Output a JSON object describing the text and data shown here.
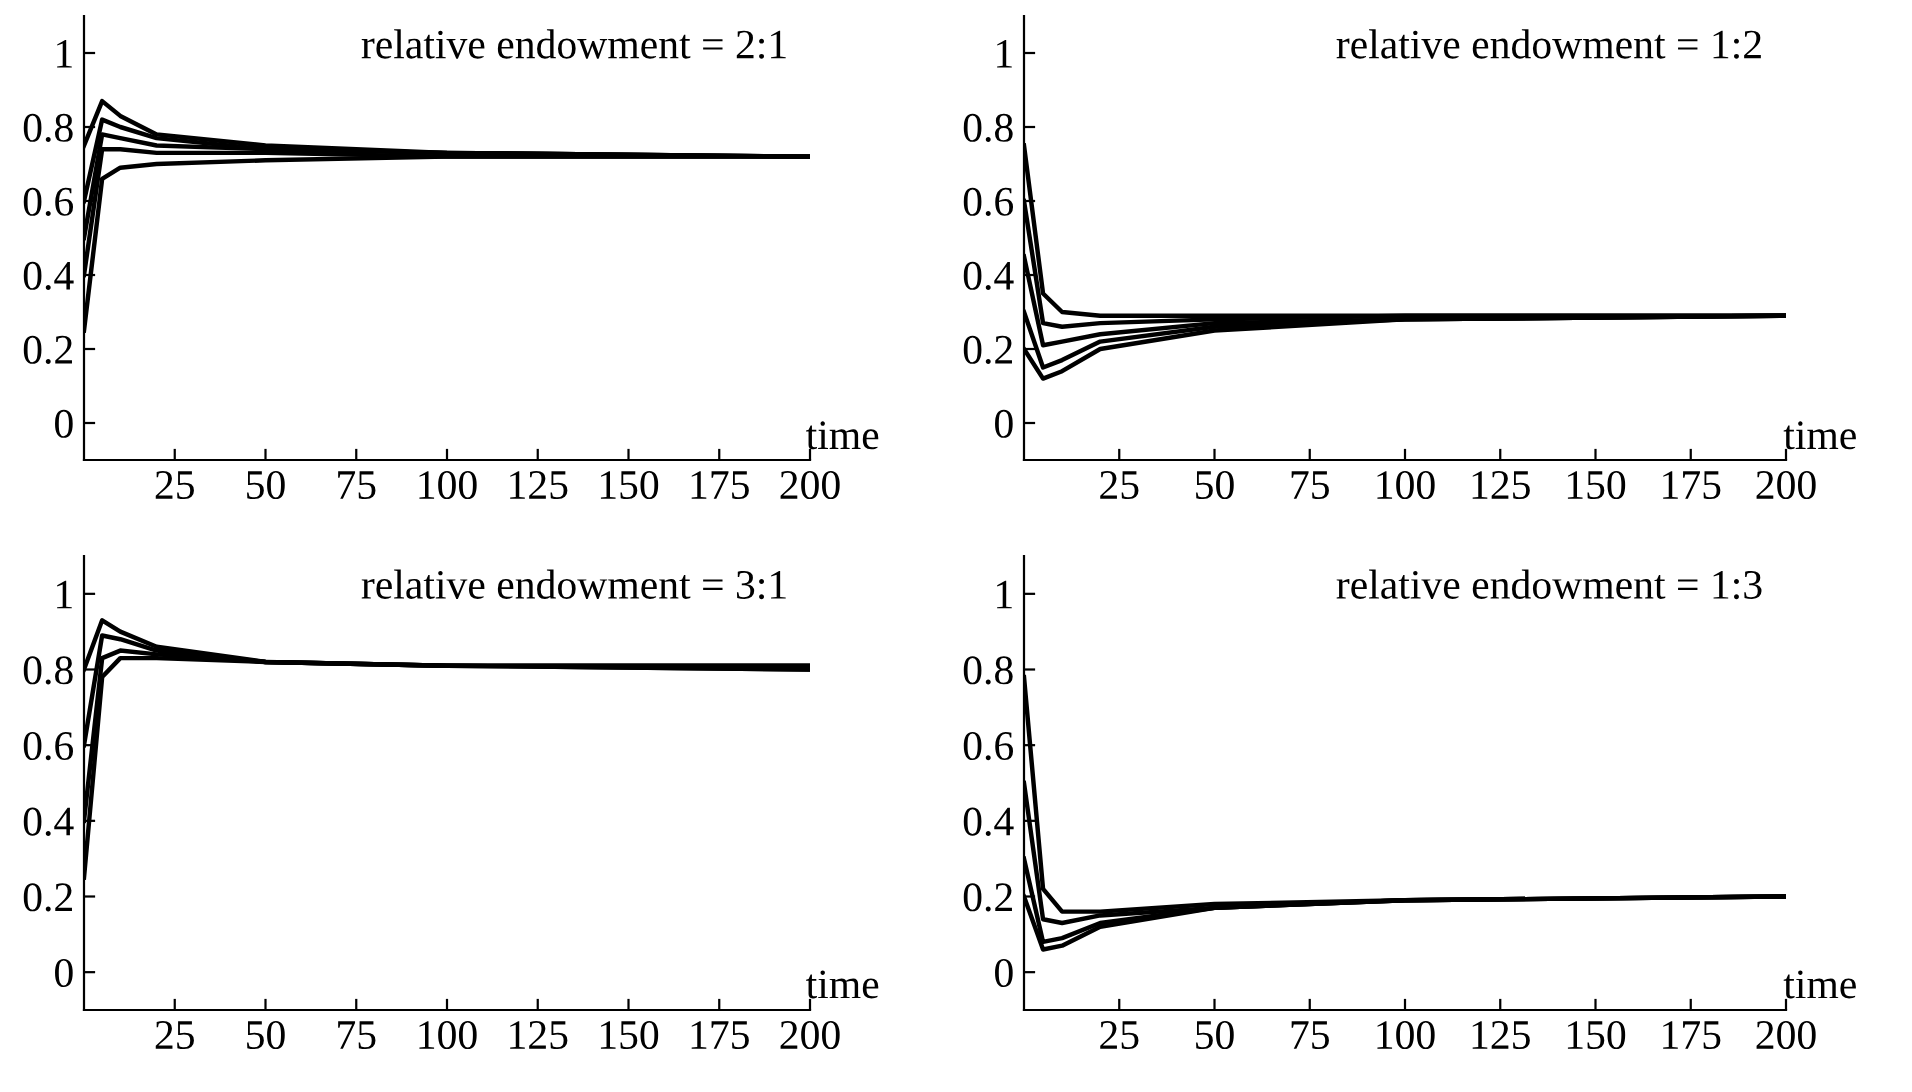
{
  "chart_data": [
    {
      "type": "line",
      "title": "relative endowment = 2:1",
      "xlabel": "time",
      "x": [
        0,
        5,
        10,
        20,
        50,
        100,
        200
      ],
      "xlim": [
        0,
        200
      ],
      "ylim": [
        -0.1,
        1.1
      ],
      "xticks": [
        25,
        50,
        75,
        100,
        125,
        150,
        175,
        200
      ],
      "yticks": [
        0,
        0.2,
        0.4,
        0.6,
        0.8,
        1
      ],
      "grid": false,
      "series": [
        {
          "color": "#000000",
          "values": [
            0.75,
            0.87,
            0.83,
            0.78,
            0.75,
            0.73,
            0.72
          ]
        },
        {
          "color": "#000000",
          "values": [
            0.6,
            0.82,
            0.8,
            0.77,
            0.74,
            0.73,
            0.72
          ]
        },
        {
          "color": "#000000",
          "values": [
            0.5,
            0.78,
            0.77,
            0.75,
            0.74,
            0.73,
            0.72
          ]
        },
        {
          "color": "#000000",
          "values": [
            0.4,
            0.74,
            0.74,
            0.73,
            0.73,
            0.72,
            0.72
          ]
        },
        {
          "color": "#000000",
          "values": [
            0.25,
            0.66,
            0.69,
            0.7,
            0.71,
            0.72,
            0.72
          ]
        }
      ]
    },
    {
      "type": "line",
      "title": "relative endowment = 1:2",
      "xlabel": "time",
      "x": [
        0,
        5,
        10,
        20,
        50,
        100,
        200
      ],
      "xlim": [
        0,
        200
      ],
      "ylim": [
        -0.1,
        1.1
      ],
      "xticks": [
        25,
        50,
        75,
        100,
        125,
        150,
        175,
        200
      ],
      "yticks": [
        0,
        0.2,
        0.4,
        0.6,
        0.8,
        1
      ],
      "grid": false,
      "series": [
        {
          "color": "#000000",
          "values": [
            0.75,
            0.35,
            0.3,
            0.29,
            0.29,
            0.29,
            0.29
          ]
        },
        {
          "color": "#000000",
          "values": [
            0.6,
            0.27,
            0.26,
            0.27,
            0.28,
            0.29,
            0.29
          ]
        },
        {
          "color": "#000000",
          "values": [
            0.45,
            0.21,
            0.22,
            0.24,
            0.27,
            0.28,
            0.29
          ]
        },
        {
          "color": "#000000",
          "values": [
            0.3,
            0.15,
            0.17,
            0.22,
            0.26,
            0.28,
            0.29
          ]
        },
        {
          "color": "#000000",
          "values": [
            0.2,
            0.12,
            0.14,
            0.2,
            0.25,
            0.28,
            0.29
          ]
        }
      ]
    },
    {
      "type": "line",
      "title": "relative endowment = 3:1",
      "xlabel": "time",
      "x": [
        0,
        5,
        10,
        20,
        50,
        100,
        200
      ],
      "xlim": [
        0,
        200
      ],
      "ylim": [
        -0.1,
        1.1
      ],
      "xticks": [
        25,
        50,
        75,
        100,
        125,
        150,
        175,
        200
      ],
      "yticks": [
        0,
        0.2,
        0.4,
        0.6,
        0.8,
        1
      ],
      "grid": false,
      "series": [
        {
          "color": "#000000",
          "values": [
            0.8,
            0.93,
            0.9,
            0.86,
            0.82,
            0.81,
            0.81
          ]
        },
        {
          "color": "#000000",
          "values": [
            0.6,
            0.89,
            0.88,
            0.85,
            0.82,
            0.81,
            0.81
          ]
        },
        {
          "color": "#000000",
          "values": [
            0.4,
            0.83,
            0.85,
            0.84,
            0.82,
            0.81,
            0.8
          ]
        },
        {
          "color": "#000000",
          "values": [
            0.25,
            0.78,
            0.83,
            0.83,
            0.82,
            0.81,
            0.8
          ]
        }
      ]
    },
    {
      "type": "line",
      "title": "relative endowment = 1:3",
      "xlabel": "time",
      "x": [
        0,
        5,
        10,
        20,
        50,
        100,
        200
      ],
      "xlim": [
        0,
        200
      ],
      "ylim": [
        -0.1,
        1.1
      ],
      "xticks": [
        25,
        50,
        75,
        100,
        125,
        150,
        175,
        200
      ],
      "yticks": [
        0,
        0.2,
        0.4,
        0.6,
        0.8,
        1
      ],
      "grid": false,
      "series": [
        {
          "color": "#000000",
          "values": [
            0.78,
            0.22,
            0.16,
            0.16,
            0.18,
            0.19,
            0.2
          ]
        },
        {
          "color": "#000000",
          "values": [
            0.5,
            0.14,
            0.13,
            0.15,
            0.17,
            0.19,
            0.2
          ]
        },
        {
          "color": "#000000",
          "values": [
            0.3,
            0.08,
            0.09,
            0.13,
            0.17,
            0.19,
            0.2
          ]
        },
        {
          "color": "#000000",
          "values": [
            0.2,
            0.06,
            0.07,
            0.12,
            0.17,
            0.19,
            0.2
          ]
        }
      ]
    }
  ]
}
